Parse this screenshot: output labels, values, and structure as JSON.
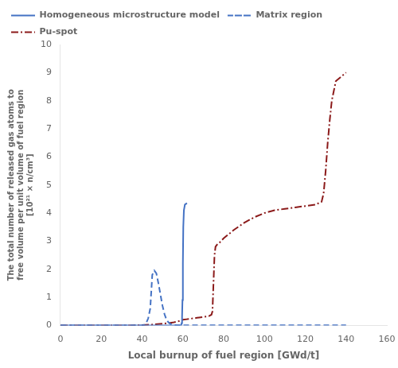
{
  "chart_data": {
    "type": "line",
    "xlabel": "Local burnup of fuel region [GWd/t]",
    "ylabel": "The total number of released gas atoms to\nfree volume per unit volume of fuel region\n[10²¹ × n/cm³]",
    "xlim": [
      0,
      160
    ],
    "ylim": [
      0,
      10
    ],
    "xticks": [
      0,
      20,
      40,
      60,
      80,
      100,
      120,
      140,
      160
    ],
    "yticks": [
      0,
      1,
      2,
      3,
      4,
      5,
      6,
      7,
      8,
      9,
      10
    ],
    "grid": false,
    "legend": "upper left",
    "series": [
      {
        "name": "Homogeneous\nmicrostructure model",
        "color": "#4472C4",
        "line_style": "solid",
        "x": [
          0,
          10,
          20,
          30,
          40,
          50,
          55,
          57,
          58,
          59,
          59.2,
          59.4,
          59.6,
          59.8,
          60.0,
          60.2,
          60.5,
          61.0,
          62.0
        ],
        "values": [
          0,
          0,
          0,
          0,
          0,
          0,
          0,
          0,
          0,
          0,
          0.02,
          0.08,
          0.3,
          0.9,
          2.2,
          3.5,
          4.1,
          4.3,
          4.35
        ]
      },
      {
        "name": "Matrix region",
        "color": "#4472C4",
        "line_style": "dashed",
        "x": [
          0,
          10,
          20,
          30,
          35,
          38,
          40,
          41,
          42,
          43,
          44,
          44.5,
          45,
          46,
          47,
          48,
          49,
          50,
          51,
          52,
          53,
          54,
          55,
          56,
          57,
          58,
          59,
          60,
          65,
          70,
          80,
          100,
          140
        ],
        "values": [
          0,
          0,
          0,
          0,
          0,
          0,
          0,
          0.02,
          0.08,
          0.25,
          0.6,
          1.2,
          1.8,
          1.95,
          1.85,
          1.5,
          1.1,
          0.7,
          0.4,
          0.2,
          0.1,
          0.05,
          0.02,
          0.01,
          0.005,
          0.003,
          0.002,
          0.001,
          0.001,
          0.001,
          0.001,
          0.001,
          0.001
        ]
      },
      {
        "name": "Pu-spot",
        "color": "#8B1A1A",
        "line_style": "dashdot",
        "x": [
          0,
          10,
          20,
          30,
          35,
          40,
          45,
          50,
          55,
          58,
          60,
          62,
          64,
          65,
          66,
          67,
          68,
          70,
          72,
          73,
          74,
          74.5,
          75,
          75.5,
          76,
          77,
          78,
          80,
          85,
          90,
          95,
          100,
          105,
          110,
          115,
          120,
          125,
          128,
          129,
          130,
          131,
          132,
          133,
          135,
          140
        ],
        "values": [
          0,
          0,
          0,
          0,
          0,
          0.01,
          0.03,
          0.06,
          0.1,
          0.15,
          0.2,
          0.22,
          0.24,
          0.25,
          0.26,
          0.27,
          0.28,
          0.3,
          0.32,
          0.34,
          0.38,
          0.5,
          1.5,
          2.5,
          2.8,
          2.9,
          2.95,
          3.1,
          3.4,
          3.65,
          3.85,
          4.0,
          4.1,
          4.15,
          4.2,
          4.25,
          4.3,
          4.4,
          4.7,
          5.5,
          6.5,
          7.3,
          8.0,
          8.7,
          9.0
        ]
      }
    ]
  }
}
